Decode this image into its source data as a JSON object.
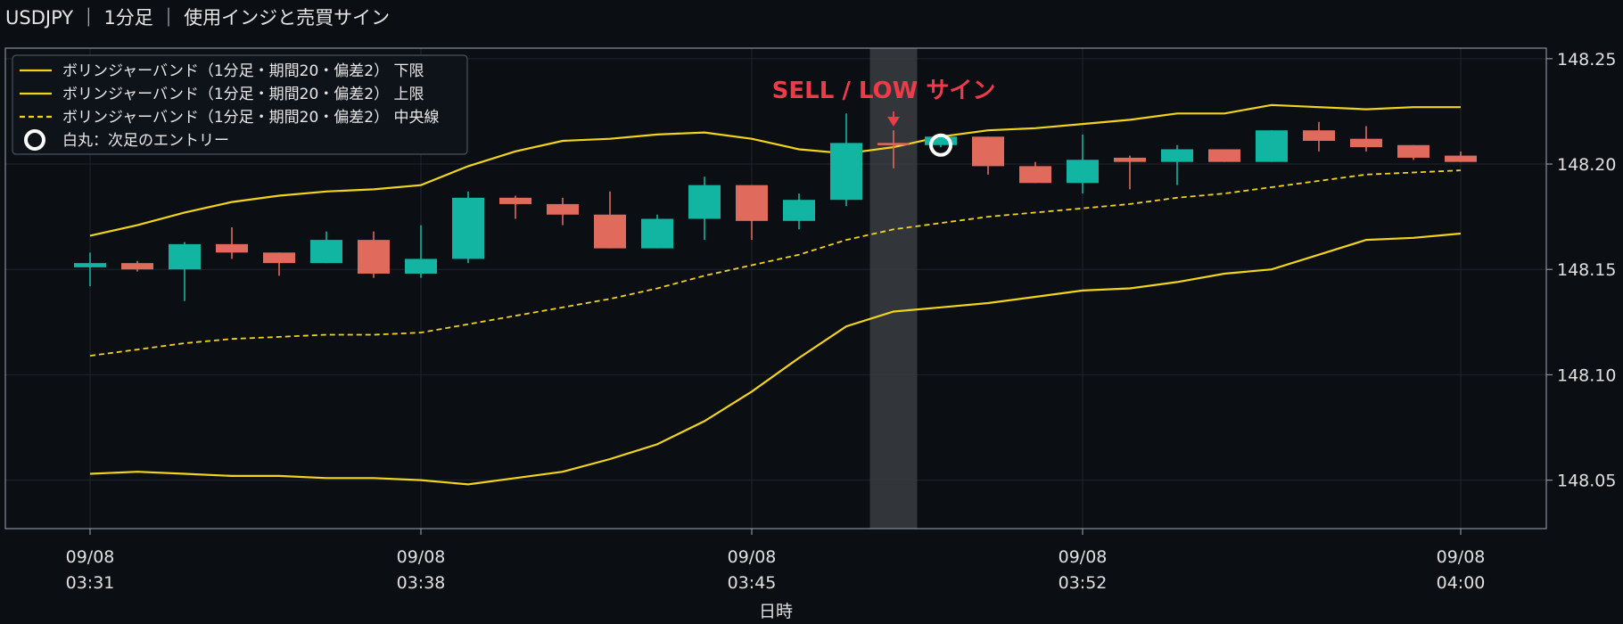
{
  "title": "USDJPY ｜ 1分足 ｜ 使用インジと売買サイン",
  "colors": {
    "background": "#0b0e13",
    "plot_border": "#8a8f99",
    "grid": "#1f242c",
    "up": "#12b5a1",
    "down": "#e06a5c",
    "band": "#f2d41c",
    "signal": "#ee3b49",
    "highlight": "#3a3d42",
    "entry_marker": "#ffffff"
  },
  "chart_data": {
    "type": "candlestick",
    "symbol": "USDJPY",
    "timeframe": "1分足",
    "xlabel": "日時",
    "ylabel": "",
    "ylim": [
      148.027,
      148.255
    ],
    "yticks": [
      148.05,
      148.1,
      148.15,
      148.2,
      148.25
    ],
    "ytick_labels": [
      "148.05",
      "148.10",
      "148.15",
      "148.20",
      "148.25"
    ],
    "xticks": [
      {
        "index": 0,
        "date": "09/08",
        "time": "03:31"
      },
      {
        "index": 7,
        "date": "09/08",
        "time": "03:38"
      },
      {
        "index": 14,
        "date": "09/08",
        "time": "03:45"
      },
      {
        "index": 21,
        "date": "09/08",
        "time": "03:52"
      },
      {
        "index": 29,
        "date": "09/08",
        "time": "04:00"
      }
    ],
    "grid": true,
    "legend_position": "top-left",
    "categories": [
      "03:31",
      "03:32",
      "03:33",
      "03:34",
      "03:35",
      "03:36",
      "03:37",
      "03:38",
      "03:39",
      "03:40",
      "03:41",
      "03:42",
      "03:43",
      "03:44",
      "03:45",
      "03:46",
      "03:47",
      "03:48",
      "03:49",
      "03:50",
      "03:51",
      "03:52",
      "03:53",
      "03:54",
      "03:55",
      "03:56",
      "03:57",
      "03:58",
      "03:59",
      "04:00"
    ],
    "ohlc": [
      {
        "o": 148.151,
        "h": 148.158,
        "l": 148.142,
        "c": 148.153
      },
      {
        "o": 148.153,
        "h": 148.154,
        "l": 148.149,
        "c": 148.15
      },
      {
        "o": 148.15,
        "h": 148.163,
        "l": 148.135,
        "c": 148.162
      },
      {
        "o": 148.162,
        "h": 148.17,
        "l": 148.155,
        "c": 148.158
      },
      {
        "o": 148.158,
        "h": 148.158,
        "l": 148.147,
        "c": 148.153
      },
      {
        "o": 148.153,
        "h": 148.168,
        "l": 148.153,
        "c": 148.164
      },
      {
        "o": 148.164,
        "h": 148.168,
        "l": 148.146,
        "c": 148.148
      },
      {
        "o": 148.148,
        "h": 148.171,
        "l": 148.146,
        "c": 148.155
      },
      {
        "o": 148.155,
        "h": 148.187,
        "l": 148.153,
        "c": 148.184
      },
      {
        "o": 148.184,
        "h": 148.185,
        "l": 148.174,
        "c": 148.181
      },
      {
        "o": 148.181,
        "h": 148.184,
        "l": 148.171,
        "c": 148.176
      },
      {
        "o": 148.176,
        "h": 148.187,
        "l": 148.16,
        "c": 148.16
      },
      {
        "o": 148.16,
        "h": 148.176,
        "l": 148.16,
        "c": 148.174
      },
      {
        "o": 148.174,
        "h": 148.194,
        "l": 148.164,
        "c": 148.19
      },
      {
        "o": 148.19,
        "h": 148.19,
        "l": 148.164,
        "c": 148.173
      },
      {
        "o": 148.173,
        "h": 148.186,
        "l": 148.169,
        "c": 148.183
      },
      {
        "o": 148.183,
        "h": 148.224,
        "l": 148.18,
        "c": 148.21
      },
      {
        "o": 148.21,
        "h": 148.216,
        "l": 148.198,
        "c": 148.209
      },
      {
        "o": 148.209,
        "h": 148.213,
        "l": 148.208,
        "c": 148.213
      },
      {
        "o": 148.213,
        "h": 148.213,
        "l": 148.195,
        "c": 148.199
      },
      {
        "o": 148.199,
        "h": 148.201,
        "l": 148.191,
        "c": 148.191
      },
      {
        "o": 148.191,
        "h": 148.214,
        "l": 148.186,
        "c": 148.202
      },
      {
        "o": 148.203,
        "h": 148.204,
        "l": 148.188,
        "c": 148.201
      },
      {
        "o": 148.201,
        "h": 148.209,
        "l": 148.19,
        "c": 148.207
      },
      {
        "o": 148.207,
        "h": 148.207,
        "l": 148.201,
        "c": 148.201
      },
      {
        "o": 148.201,
        "h": 148.216,
        "l": 148.201,
        "c": 148.216
      },
      {
        "o": 148.216,
        "h": 148.22,
        "l": 148.206,
        "c": 148.211
      },
      {
        "o": 148.212,
        "h": 148.218,
        "l": 148.206,
        "c": 148.208
      },
      {
        "o": 148.209,
        "h": 148.209,
        "l": 148.202,
        "c": 148.203
      },
      {
        "o": 148.204,
        "h": 148.206,
        "l": 148.201,
        "c": 148.201
      }
    ],
    "series": [
      {
        "name": "ボリンジャーバンド（1分足・期間20・偏差2） 下限",
        "style": "solid",
        "values": [
          148.053,
          148.054,
          148.053,
          148.052,
          148.052,
          148.051,
          148.051,
          148.05,
          148.048,
          148.051,
          148.054,
          148.06,
          148.067,
          148.078,
          148.092,
          148.108,
          148.123,
          148.13,
          148.132,
          148.134,
          148.137,
          148.14,
          148.141,
          148.144,
          148.148,
          148.15,
          148.157,
          148.164,
          148.165,
          148.167
        ]
      },
      {
        "name": "ボリンジャーバンド（1分足・期間20・偏差2） 上限",
        "style": "solid",
        "values": [
          148.166,
          148.171,
          148.177,
          148.182,
          148.185,
          148.187,
          148.188,
          148.19,
          148.199,
          148.206,
          148.211,
          148.212,
          148.214,
          148.215,
          148.212,
          148.207,
          148.205,
          148.208,
          148.213,
          148.216,
          148.217,
          148.219,
          148.221,
          148.224,
          148.224,
          148.228,
          148.227,
          148.226,
          148.227,
          148.227
        ]
      },
      {
        "name": "ボリンジャーバンド（1分足・期間20・偏差2） 中央線",
        "style": "dashed",
        "values": [
          148.109,
          148.112,
          148.115,
          148.117,
          148.118,
          148.119,
          148.119,
          148.12,
          148.124,
          148.128,
          148.132,
          148.136,
          148.141,
          148.147,
          148.152,
          148.157,
          148.164,
          148.169,
          148.172,
          148.175,
          148.177,
          148.179,
          148.181,
          148.184,
          148.186,
          148.189,
          148.192,
          148.195,
          148.196,
          148.197
        ]
      }
    ],
    "signal": {
      "index": 17,
      "label": "SELL / LOW サイン"
    },
    "entry": {
      "index": 18,
      "price": 148.209,
      "legend_label": "白丸：次足のエントリー"
    }
  }
}
